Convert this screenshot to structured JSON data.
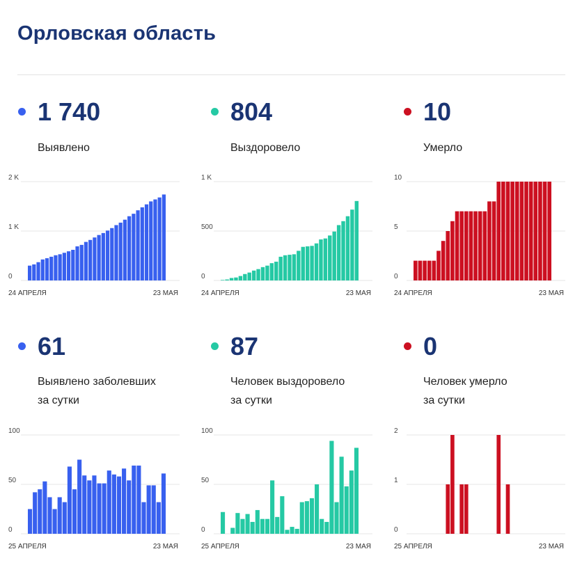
{
  "page_title": "Орловская область",
  "colors": {
    "blue": "#3860ef",
    "teal": "#25c9a4",
    "red": "#cc1021",
    "title": "#1a3473"
  },
  "stats": [
    {
      "value": "1 740",
      "label": [
        "Выявлено"
      ],
      "color": "#3860ef"
    },
    {
      "value": "804",
      "label": [
        "Выздоровело"
      ],
      "color": "#25c9a4"
    },
    {
      "value": "10",
      "label": [
        "Умерло"
      ],
      "color": "#cc1021"
    },
    {
      "value": "61",
      "label": [
        "Выявлено заболевших",
        "за сутки"
      ],
      "color": "#3860ef"
    },
    {
      "value": "87",
      "label": [
        "Человек выздоровело",
        "за сутки"
      ],
      "color": "#25c9a4"
    },
    {
      "value": "0",
      "label": [
        "Человек умерло",
        "за сутки"
      ],
      "color": "#cc1021"
    }
  ],
  "chart_data": [
    {
      "type": "bar",
      "color": "#3860ef",
      "x_start_label": "24 АПРЕЛЯ",
      "x_end_label": "23 МАЯ",
      "ylim": [
        0,
        2000
      ],
      "yticks": [
        {
          "v": 0,
          "label": "0"
        },
        {
          "v": 1000,
          "label": "1 K"
        },
        {
          "v": 2000,
          "label": "2 K"
        }
      ],
      "values": [
        300,
        325,
        370,
        425,
        450,
        480,
        510,
        530,
        560,
        590,
        620,
        690,
        720,
        780,
        820,
        870,
        920,
        960,
        1010,
        1060,
        1120,
        1170,
        1230,
        1300,
        1350,
        1420,
        1480,
        1540,
        1600,
        1640,
        1680,
        1740
      ]
    },
    {
      "type": "bar",
      "color": "#25c9a4",
      "x_start_label": "24 АПРЕЛЯ",
      "x_end_label": "23 МАЯ",
      "ylim": [
        0,
        1000
      ],
      "yticks": [
        {
          "v": 0,
          "label": "0"
        },
        {
          "v": 500,
          "label": "500"
        },
        {
          "v": 1000,
          "label": "1 K"
        }
      ],
      "values": [
        5,
        10,
        25,
        30,
        45,
        65,
        80,
        100,
        115,
        135,
        150,
        175,
        190,
        240,
        255,
        260,
        265,
        300,
        340,
        345,
        350,
        375,
        415,
        425,
        455,
        495,
        560,
        600,
        650,
        717,
        804
      ]
    },
    {
      "type": "bar",
      "color": "#cc1021",
      "x_start_label": "24 АПРЕЛЯ",
      "x_end_label": "23 МАЯ",
      "ylim": [
        0,
        10
      ],
      "yticks": [
        {
          "v": 0,
          "label": "0"
        },
        {
          "v": 5,
          "label": "5"
        },
        {
          "v": 10,
          "label": "10"
        }
      ],
      "values": [
        2,
        2,
        2,
        2,
        2,
        3,
        4,
        5,
        6,
        7,
        7,
        7,
        7,
        7,
        7,
        7,
        8,
        8,
        10,
        10,
        10,
        10,
        10,
        10,
        10,
        10,
        10,
        10,
        10,
        10
      ]
    },
    {
      "type": "bar",
      "color": "#3860ef",
      "x_start_label": "25 АПРЕЛЯ",
      "x_end_label": "23 МАЯ",
      "ylim": [
        0,
        100
      ],
      "yticks": [
        {
          "v": 0,
          "label": "0"
        },
        {
          "v": 50,
          "label": "50"
        },
        {
          "v": 100,
          "label": "100"
        }
      ],
      "values": [
        25,
        42,
        45,
        53,
        37,
        25,
        37,
        32,
        68,
        45,
        75,
        59,
        54,
        59,
        51,
        51,
        64,
        60,
        58,
        66,
        54,
        69,
        69,
        32,
        49,
        49,
        32,
        61
      ]
    },
    {
      "type": "bar",
      "color": "#25c9a4",
      "x_start_label": "25 АПРЕЛЯ",
      "x_end_label": "23 МАЯ",
      "ylim": [
        0,
        100
      ],
      "yticks": [
        {
          "v": 0,
          "label": "0"
        },
        {
          "v": 50,
          "label": "50"
        },
        {
          "v": 100,
          "label": "100"
        }
      ],
      "values": [
        22,
        0,
        6,
        21,
        15,
        20,
        12,
        24,
        15,
        15,
        54,
        17,
        38,
        4,
        7,
        5,
        32,
        33,
        36,
        50,
        15,
        12,
        94,
        32,
        78,
        48,
        64,
        87
      ]
    },
    {
      "type": "bar",
      "color": "#cc1021",
      "x_start_label": "25 АПРЕЛЯ",
      "x_end_label": "23 МАЯ",
      "ylim": [
        0,
        2
      ],
      "yticks": [
        {
          "v": 0,
          "label": "0"
        },
        {
          "v": 1,
          "label": "1"
        },
        {
          "v": 2,
          "label": "2"
        }
      ],
      "values": [
        0,
        0,
        0,
        0,
        0,
        0,
        0,
        1,
        2,
        0,
        1,
        1,
        0,
        0,
        0,
        0,
        0,
        0,
        2,
        0,
        1,
        0,
        0,
        0,
        0,
        0,
        0,
        0,
        0,
        0
      ]
    }
  ]
}
